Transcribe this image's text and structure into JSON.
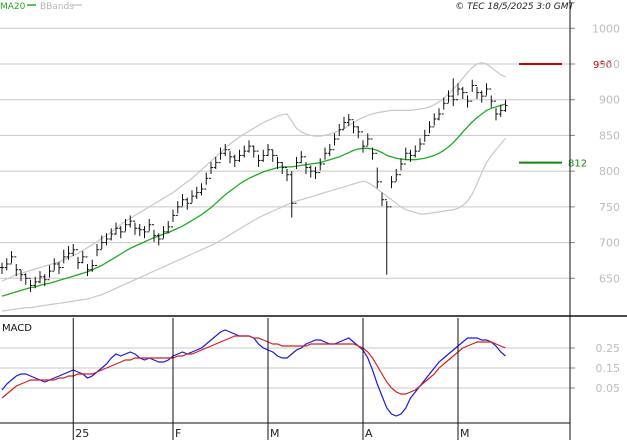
{
  "header": {
    "legend_ma": "MA20",
    "legend_bb": "BBands",
    "copyright": "© TEC 18/5/2025 3:0 GMT"
  },
  "macd_panel": {
    "label": "MACD"
  },
  "colors": {
    "ma": "#22aa22",
    "bbands": "#c8c8c8",
    "candle": "#111111",
    "macd_blue": "#1a1adc",
    "macd_red": "#d42020",
    "resistance": "#cc0000",
    "support": "#118811",
    "grid": "#c8c8c8"
  },
  "chart_data": [
    {
      "type": "candlestick",
      "title": "",
      "ylim": [
        600,
        1020
      ],
      "yticks": [
        650,
        700,
        750,
        800,
        850,
        900,
        950,
        1000
      ],
      "xticks": [
        {
          "index": 15,
          "label": "25"
        },
        {
          "index": 36,
          "label": "F"
        },
        {
          "index": 56,
          "label": "M"
        },
        {
          "index": 76,
          "label": "A"
        },
        {
          "index": 96,
          "label": "M"
        }
      ],
      "levels": [
        {
          "name": "resistance",
          "value": 950,
          "label": "950"
        },
        {
          "name": "support",
          "value": 812,
          "label": "812"
        }
      ],
      "close": [
        665,
        670,
        680,
        662,
        655,
        650,
        640,
        645,
        652,
        648,
        660,
        670,
        665,
        680,
        685,
        690,
        672,
        680,
        662,
        668,
        690,
        700,
        705,
        712,
        720,
        715,
        725,
        730,
        720,
        718,
        715,
        725,
        710,
        705,
        715,
        722,
        738,
        750,
        760,
        755,
        765,
        770,
        775,
        790,
        805,
        812,
        825,
        830,
        820,
        815,
        822,
        828,
        835,
        828,
        815,
        822,
        830,
        822,
        812,
        805,
        795,
        755,
        812,
        820,
        805,
        800,
        798,
        810,
        825,
        830,
        845,
        858,
        868,
        872,
        862,
        855,
        835,
        845,
        825,
        785,
        760,
        750,
        785,
        795,
        810,
        825,
        822,
        828,
        838,
        850,
        862,
        873,
        880,
        895,
        905,
        900,
        915,
        910,
        898,
        920,
        910,
        905,
        915,
        898,
        880,
        885,
        892
      ],
      "high": [
        672,
        678,
        688,
        670,
        662,
        657,
        648,
        652,
        660,
        656,
        668,
        678,
        673,
        690,
        695,
        698,
        680,
        688,
        670,
        676,
        698,
        710,
        713,
        720,
        728,
        723,
        733,
        738,
        728,
        726,
        723,
        733,
        718,
        713,
        723,
        730,
        746,
        758,
        768,
        763,
        773,
        778,
        783,
        798,
        813,
        820,
        833,
        838,
        828,
        823,
        830,
        836,
        843,
        836,
        823,
        830,
        838,
        830,
        820,
        813,
        803,
        800,
        820,
        828,
        813,
        808,
        806,
        818,
        833,
        838,
        853,
        866,
        876,
        880,
        870,
        863,
        843,
        853,
        833,
        805,
        770,
        758,
        793,
        803,
        818,
        833,
        830,
        836,
        846,
        858,
        870,
        881,
        888,
        903,
        913,
        930,
        923,
        918,
        906,
        928,
        918,
        913,
        923,
        906,
        888,
        893,
        900
      ],
      "low": [
        656,
        661,
        671,
        653,
        646,
        641,
        631,
        636,
        643,
        639,
        651,
        661,
        656,
        671,
        676,
        681,
        663,
        671,
        653,
        659,
        681,
        691,
        696,
        703,
        711,
        706,
        716,
        721,
        711,
        709,
        706,
        716,
        701,
        696,
        706,
        713,
        729,
        741,
        751,
        746,
        756,
        761,
        766,
        781,
        796,
        803,
        816,
        821,
        811,
        806,
        813,
        819,
        826,
        819,
        806,
        813,
        821,
        813,
        803,
        796,
        786,
        735,
        803,
        811,
        796,
        791,
        789,
        801,
        816,
        821,
        836,
        849,
        859,
        863,
        853,
        846,
        826,
        836,
        816,
        776,
        751,
        655,
        776,
        786,
        801,
        816,
        813,
        819,
        829,
        841,
        853,
        864,
        871,
        886,
        896,
        891,
        906,
        901,
        889,
        911,
        901,
        896,
        906,
        889,
        871,
        876,
        883
      ],
      "ma20": [
        625,
        627,
        629,
        631,
        633,
        635,
        637,
        638,
        640,
        642,
        643,
        645,
        647,
        649,
        651,
        653,
        655,
        657,
        659,
        662,
        665,
        668,
        672,
        676,
        680,
        684,
        688,
        692,
        695,
        698,
        701,
        704,
        707,
        709,
        712,
        714,
        717,
        720,
        723,
        727,
        731,
        735,
        739,
        744,
        749,
        755,
        761,
        767,
        772,
        777,
        782,
        786,
        790,
        793,
        796,
        799,
        801,
        803,
        805,
        806,
        806,
        806,
        807,
        808,
        809,
        810,
        811,
        812,
        814,
        816,
        818,
        820,
        823,
        826,
        829,
        831,
        832,
        832,
        831,
        829,
        826,
        822,
        820,
        818,
        817,
        816,
        816,
        816,
        817,
        818,
        820,
        822,
        825,
        829,
        834,
        840,
        847,
        855,
        862,
        869,
        875,
        880,
        885,
        888,
        890,
        892,
        894
      ],
      "bb_upper": [
        646,
        649,
        652,
        655,
        657,
        659,
        661,
        663,
        665,
        667,
        669,
        671,
        673,
        676,
        679,
        682,
        685,
        689,
        693,
        697,
        701,
        706,
        710,
        715,
        720,
        725,
        730,
        734,
        738,
        742,
        746,
        750,
        754,
        758,
        762,
        766,
        770,
        775,
        780,
        785,
        790,
        796,
        802,
        808,
        814,
        820,
        826,
        832,
        838,
        843,
        848,
        852,
        856,
        860,
        864,
        868,
        871,
        874,
        877,
        879,
        880,
        870,
        860,
        855,
        852,
        850,
        849,
        849,
        850,
        852,
        854,
        857,
        860,
        864,
        868,
        872,
        875,
        878,
        880,
        882,
        883,
        884,
        885,
        885,
        885,
        885,
        885,
        886,
        887,
        888,
        890,
        893,
        897,
        902,
        908,
        915,
        922,
        930,
        938,
        945,
        950,
        952,
        950,
        945,
        940,
        935,
        932
      ],
      "bb_lower": [
        604,
        605,
        606,
        607,
        608,
        609,
        609,
        610,
        611,
        612,
        613,
        614,
        615,
        616,
        617,
        618,
        619,
        620,
        621,
        623,
        625,
        627,
        630,
        633,
        636,
        639,
        642,
        645,
        648,
        651,
        654,
        657,
        660,
        663,
        666,
        669,
        672,
        675,
        678,
        681,
        684,
        687,
        690,
        693,
        696,
        699,
        703,
        707,
        711,
        715,
        719,
        723,
        727,
        731,
        735,
        738,
        741,
        744,
        747,
        750,
        753,
        756,
        758,
        760,
        762,
        764,
        766,
        768,
        770,
        772,
        774,
        776,
        778,
        780,
        782,
        784,
        786,
        784,
        780,
        775,
        770,
        765,
        760,
        755,
        750,
        746,
        744,
        742,
        740,
        740,
        741,
        742,
        743,
        744,
        745,
        746,
        748,
        752,
        758,
        768,
        782,
        798,
        812,
        822,
        830,
        838,
        846
      ]
    },
    {
      "type": "line",
      "title": "MACD",
      "ylim": [
        -0.12,
        0.4
      ],
      "yticks": [
        0.05,
        0.15,
        0.25
      ],
      "ytick_labels": [
        "0.05",
        "0.15",
        "0.25"
      ],
      "series": [
        {
          "name": "",
          "color": "macd_blue",
          "values": [
            0.04,
            0.07,
            0.09,
            0.11,
            0.12,
            0.12,
            0.11,
            0.1,
            0.09,
            0.08,
            0.09,
            0.1,
            0.11,
            0.12,
            0.13,
            0.14,
            0.13,
            0.12,
            0.1,
            0.11,
            0.13,
            0.15,
            0.17,
            0.2,
            0.22,
            0.21,
            0.22,
            0.23,
            0.22,
            0.2,
            0.19,
            0.2,
            0.19,
            0.18,
            0.18,
            0.19,
            0.21,
            0.22,
            0.23,
            0.22,
            0.23,
            0.24,
            0.25,
            0.27,
            0.29,
            0.31,
            0.33,
            0.34,
            0.33,
            0.32,
            0.31,
            0.31,
            0.31,
            0.3,
            0.27,
            0.25,
            0.24,
            0.23,
            0.21,
            0.2,
            0.2,
            0.22,
            0.24,
            0.25,
            0.27,
            0.28,
            0.29,
            0.29,
            0.28,
            0.27,
            0.27,
            0.28,
            0.29,
            0.3,
            0.28,
            0.26,
            0.24,
            0.2,
            0.14,
            0.07,
            0.01,
            -0.05,
            -0.08,
            -0.09,
            -0.08,
            -0.05,
            0.0,
            0.03,
            0.06,
            0.09,
            0.12,
            0.15,
            0.18,
            0.2,
            0.22,
            0.24,
            0.26,
            0.28,
            0.3,
            0.3,
            0.3,
            0.29,
            0.29,
            0.28,
            0.26,
            0.23,
            0.21
          ]
        },
        {
          "name": "",
          "color": "macd_red",
          "values": [
            0.0,
            0.02,
            0.04,
            0.06,
            0.07,
            0.08,
            0.09,
            0.09,
            0.09,
            0.09,
            0.09,
            0.09,
            0.1,
            0.1,
            0.11,
            0.11,
            0.12,
            0.12,
            0.12,
            0.12,
            0.13,
            0.14,
            0.15,
            0.16,
            0.17,
            0.18,
            0.19,
            0.19,
            0.2,
            0.2,
            0.2,
            0.2,
            0.2,
            0.2,
            0.2,
            0.2,
            0.2,
            0.21,
            0.21,
            0.22,
            0.22,
            0.23,
            0.24,
            0.25,
            0.26,
            0.27,
            0.28,
            0.29,
            0.3,
            0.31,
            0.31,
            0.31,
            0.31,
            0.3,
            0.3,
            0.29,
            0.28,
            0.27,
            0.27,
            0.26,
            0.26,
            0.26,
            0.26,
            0.26,
            0.26,
            0.27,
            0.27,
            0.27,
            0.27,
            0.27,
            0.27,
            0.27,
            0.27,
            0.27,
            0.27,
            0.26,
            0.25,
            0.23,
            0.2,
            0.16,
            0.12,
            0.08,
            0.05,
            0.03,
            0.02,
            0.02,
            0.03,
            0.04,
            0.06,
            0.08,
            0.1,
            0.12,
            0.15,
            0.17,
            0.19,
            0.21,
            0.23,
            0.25,
            0.26,
            0.27,
            0.28,
            0.28,
            0.28,
            0.28,
            0.27,
            0.26,
            0.25
          ]
        }
      ]
    }
  ]
}
